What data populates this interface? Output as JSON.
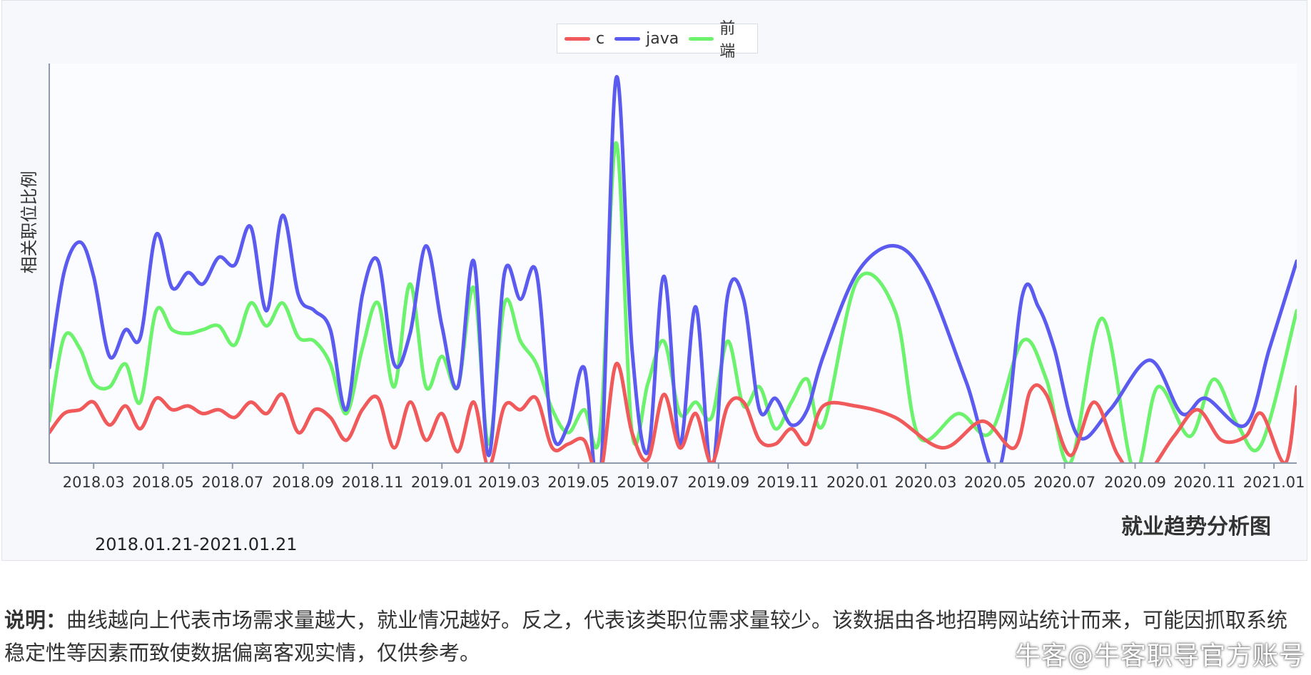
{
  "chart_data": {
    "type": "line",
    "subtitle": "就业趋势分析图",
    "date_range": "2018.01.21-2021.01.21",
    "ylabel": "相关职位比例",
    "xlabel": "",
    "x_tick_labels": [
      "2018.03",
      "2018.05",
      "2018.07",
      "2018.09",
      "2018.11",
      "2019.01",
      "2019.03",
      "2019.05",
      "2019.07",
      "2019.09",
      "2019.11",
      "2020.01",
      "2020.03",
      "2020.05",
      "2020.07",
      "2020.09",
      "2020.11",
      "2021.01"
    ],
    "legend_position": "top-center",
    "grid": false,
    "ylim": [
      0,
      100
    ],
    "series": [
      {
        "name": "c",
        "color": "#f05a5a",
        "points": [
          [
            "2018.01.21",
            8
          ],
          [
            "2018.02.03",
            13
          ],
          [
            "2018.02.17",
            14
          ],
          [
            "2018.03.01",
            16
          ],
          [
            "2018.03.15",
            10
          ],
          [
            "2018.03.29",
            15
          ],
          [
            "2018.04.11",
            9
          ],
          [
            "2018.04.25",
            17
          ],
          [
            "2018.05.09",
            14
          ],
          [
            "2018.05.23",
            15
          ],
          [
            "2018.06.05",
            13
          ],
          [
            "2018.06.19",
            14
          ],
          [
            "2018.07.03",
            12
          ],
          [
            "2018.07.17",
            16
          ],
          [
            "2018.07.31",
            13
          ],
          [
            "2018.08.14",
            18
          ],
          [
            "2018.08.28",
            8
          ],
          [
            "2018.09.11",
            14
          ],
          [
            "2018.09.25",
            12
          ],
          [
            "2018.10.09",
            6
          ],
          [
            "2018.10.23",
            14
          ],
          [
            "2018.11.06",
            17
          ],
          [
            "2018.11.20",
            4
          ],
          [
            "2018.12.04",
            16
          ],
          [
            "2018.12.18",
            6
          ],
          [
            "2019.01.01",
            13
          ],
          [
            "2019.01.15",
            3
          ],
          [
            "2019.01.29",
            16
          ],
          [
            "2019.02.11",
            -1
          ],
          [
            "2019.02.25",
            15
          ],
          [
            "2019.03.11",
            14
          ],
          [
            "2019.03.25",
            17
          ],
          [
            "2019.04.08",
            4
          ],
          [
            "2019.04.22",
            5
          ],
          [
            "2019.05.06",
            6
          ],
          [
            "2019.05.20",
            -3
          ],
          [
            "2019.06.03",
            26
          ],
          [
            "2019.06.17",
            8
          ],
          [
            "2019.07.01",
            1
          ],
          [
            "2019.07.15",
            18
          ],
          [
            "2019.07.29",
            4
          ],
          [
            "2019.08.12",
            13
          ],
          [
            "2019.08.26",
            0
          ],
          [
            "2019.09.09",
            15
          ],
          [
            "2019.09.23",
            16
          ],
          [
            "2019.10.07",
            6
          ],
          [
            "2019.10.21",
            5
          ],
          [
            "2019.11.04",
            9
          ],
          [
            "2019.11.18",
            5
          ],
          [
            "2019.12.02",
            15
          ],
          [
            "2019.12.30",
            15
          ],
          [
            "2020.02.03",
            12
          ],
          [
            "2020.03.16",
            4
          ],
          [
            "2020.04.20",
            11
          ],
          [
            "2020.05.18",
            4
          ],
          [
            "2020.06.01",
            19
          ],
          [
            "2020.06.15",
            18
          ],
          [
            "2020.07.06",
            2
          ],
          [
            "2020.07.27",
            16
          ],
          [
            "2020.08.17",
            2
          ],
          [
            "2020.09.07",
            -4
          ],
          [
            "2020.10.05",
            7
          ],
          [
            "2020.10.26",
            14
          ],
          [
            "2020.11.16",
            6
          ],
          [
            "2020.12.07",
            7
          ],
          [
            "2020.12.21",
            13
          ],
          [
            "2021.01.11",
            0
          ],
          [
            "2021.01.21",
            20
          ]
        ]
      },
      {
        "name": "java",
        "color": "#5b5bf0",
        "points": [
          [
            "2018.01.21",
            25
          ],
          [
            "2018.02.03",
            50
          ],
          [
            "2018.02.17",
            58
          ],
          [
            "2018.03.01",
            49
          ],
          [
            "2018.03.15",
            28
          ],
          [
            "2018.03.29",
            35
          ],
          [
            "2018.04.11",
            33
          ],
          [
            "2018.04.25",
            60
          ],
          [
            "2018.05.09",
            46
          ],
          [
            "2018.05.23",
            50
          ],
          [
            "2018.06.05",
            47
          ],
          [
            "2018.06.19",
            54
          ],
          [
            "2018.07.03",
            52
          ],
          [
            "2018.07.17",
            62
          ],
          [
            "2018.07.31",
            40
          ],
          [
            "2018.08.14",
            65
          ],
          [
            "2018.08.28",
            44
          ],
          [
            "2018.09.11",
            40
          ],
          [
            "2018.09.25",
            35
          ],
          [
            "2018.10.09",
            14
          ],
          [
            "2018.10.23",
            44
          ],
          [
            "2018.11.06",
            53
          ],
          [
            "2018.11.20",
            26
          ],
          [
            "2018.12.04",
            34
          ],
          [
            "2018.12.18",
            57
          ],
          [
            "2019.01.01",
            36
          ],
          [
            "2019.01.15",
            20
          ],
          [
            "2019.01.29",
            53
          ],
          [
            "2019.02.11",
            2
          ],
          [
            "2019.02.25",
            50
          ],
          [
            "2019.03.11",
            43
          ],
          [
            "2019.03.25",
            50
          ],
          [
            "2019.04.08",
            8
          ],
          [
            "2019.04.22",
            10
          ],
          [
            "2019.05.06",
            25
          ],
          [
            "2019.05.20",
            -5
          ],
          [
            "2019.06.03",
            101
          ],
          [
            "2019.06.17",
            30
          ],
          [
            "2019.07.01",
            3
          ],
          [
            "2019.07.15",
            49
          ],
          [
            "2019.07.29",
            5
          ],
          [
            "2019.08.12",
            41
          ],
          [
            "2019.08.26",
            -2
          ],
          [
            "2019.09.09",
            44
          ],
          [
            "2019.09.23",
            43
          ],
          [
            "2019.10.07",
            14
          ],
          [
            "2019.10.21",
            17
          ],
          [
            "2019.11.04",
            10
          ],
          [
            "2019.11.18",
            14
          ],
          [
            "2019.12.02",
            28
          ],
          [
            "2020.01.01",
            50
          ],
          [
            "2020.02.03",
            57
          ],
          [
            "2020.03.02",
            48
          ],
          [
            "2020.04.06",
            21
          ],
          [
            "2020.05.04",
            -2
          ],
          [
            "2020.05.25",
            44
          ],
          [
            "2020.06.08",
            41
          ],
          [
            "2020.06.22",
            30
          ],
          [
            "2020.07.13",
            7
          ],
          [
            "2020.08.10",
            14
          ],
          [
            "2020.09.14",
            27
          ],
          [
            "2020.10.12",
            13
          ],
          [
            "2020.11.02",
            17
          ],
          [
            "2020.12.07",
            10
          ],
          [
            "2020.12.28",
            30
          ],
          [
            "2021.01.21",
            53
          ]
        ]
      },
      {
        "name": "前端",
        "color": "#6cf26c",
        "points": [
          [
            "2018.01.21",
            11
          ],
          [
            "2018.02.03",
            33
          ],
          [
            "2018.02.17",
            30
          ],
          [
            "2018.03.01",
            21
          ],
          [
            "2018.03.15",
            20
          ],
          [
            "2018.03.29",
            26
          ],
          [
            "2018.04.11",
            16
          ],
          [
            "2018.04.25",
            40
          ],
          [
            "2018.05.09",
            35
          ],
          [
            "2018.05.23",
            34
          ],
          [
            "2018.06.05",
            35
          ],
          [
            "2018.06.19",
            36
          ],
          [
            "2018.07.03",
            31
          ],
          [
            "2018.07.17",
            42
          ],
          [
            "2018.07.31",
            36
          ],
          [
            "2018.08.14",
            42
          ],
          [
            "2018.08.28",
            33
          ],
          [
            "2018.09.11",
            32
          ],
          [
            "2018.09.25",
            26
          ],
          [
            "2018.10.09",
            13
          ],
          [
            "2018.10.23",
            30
          ],
          [
            "2018.11.06",
            42
          ],
          [
            "2018.11.20",
            20
          ],
          [
            "2018.12.04",
            47
          ],
          [
            "2018.12.18",
            20
          ],
          [
            "2019.01.01",
            28
          ],
          [
            "2019.01.15",
            20
          ],
          [
            "2019.01.29",
            46
          ],
          [
            "2019.02.11",
            5
          ],
          [
            "2019.02.25",
            42
          ],
          [
            "2019.03.11",
            32
          ],
          [
            "2019.03.25",
            26
          ],
          [
            "2019.04.08",
            14
          ],
          [
            "2019.04.22",
            8
          ],
          [
            "2019.05.06",
            14
          ],
          [
            "2019.05.20",
            8
          ],
          [
            "2019.06.03",
            84
          ],
          [
            "2019.06.17",
            8
          ],
          [
            "2019.07.01",
            21
          ],
          [
            "2019.07.15",
            32
          ],
          [
            "2019.07.29",
            13
          ],
          [
            "2019.08.12",
            16
          ],
          [
            "2019.08.26",
            12
          ],
          [
            "2019.09.09",
            32
          ],
          [
            "2019.09.23",
            15
          ],
          [
            "2019.10.07",
            20
          ],
          [
            "2019.10.21",
            9
          ],
          [
            "2019.11.04",
            16
          ],
          [
            "2019.11.18",
            22
          ],
          [
            "2019.12.02",
            10
          ],
          [
            "2020.01.01",
            48
          ],
          [
            "2020.02.03",
            40
          ],
          [
            "2020.02.24",
            7
          ],
          [
            "2020.03.30",
            13
          ],
          [
            "2020.04.27",
            8
          ],
          [
            "2020.05.25",
            32
          ],
          [
            "2020.06.15",
            22
          ],
          [
            "2020.07.06",
            0
          ],
          [
            "2020.08.03",
            38
          ],
          [
            "2020.08.31",
            -2
          ],
          [
            "2020.09.21",
            20
          ],
          [
            "2020.10.19",
            7
          ],
          [
            "2020.11.09",
            22
          ],
          [
            "2020.11.30",
            10
          ],
          [
            "2020.12.21",
            5
          ],
          [
            "2021.01.21",
            40
          ]
        ]
      }
    ]
  },
  "caption": {
    "label": "说明：",
    "text": "曲线越向上代表市场需求量越大，就业情况越好。反之，代表该类职位需求量较少。该数据由各地招聘网站统计而来，可能因抓取系统稳定性等因素而致使数据偏离客观实情，仅供参考。"
  },
  "watermark": "牛客@牛客职导官方账号"
}
